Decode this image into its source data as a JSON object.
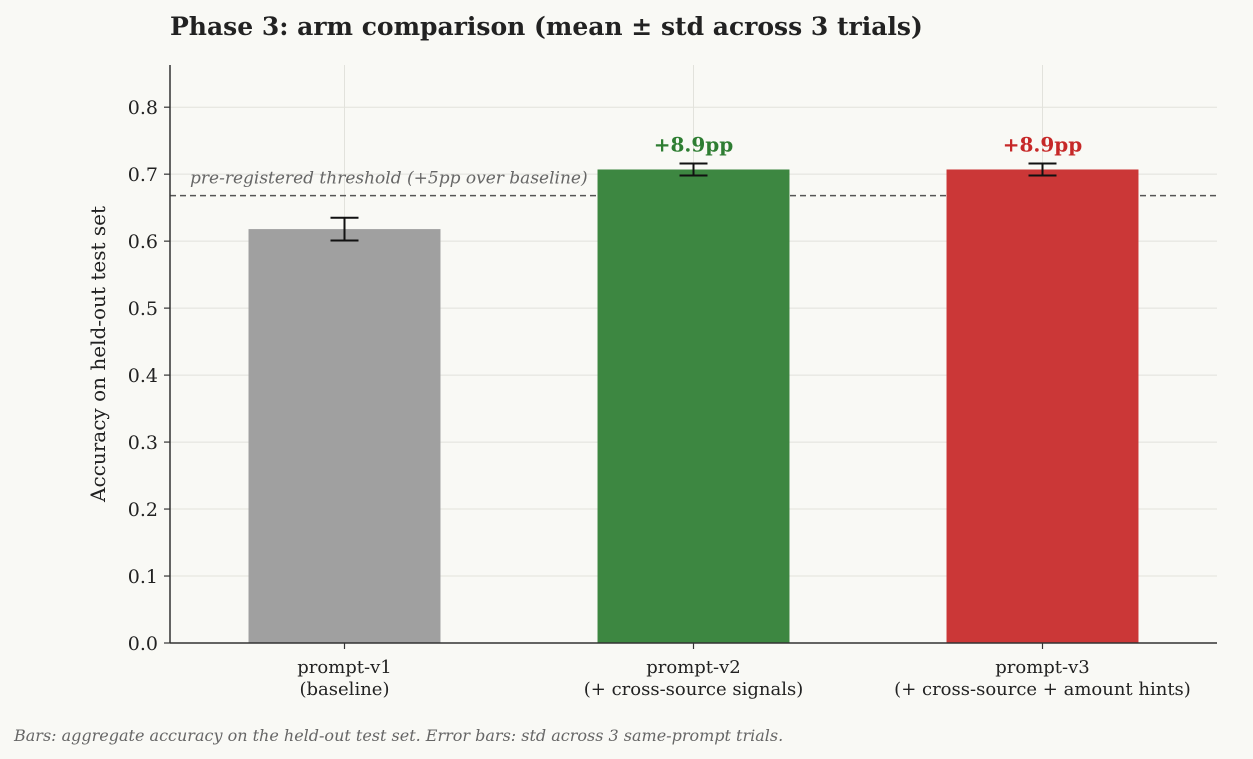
{
  "chart_data": {
    "type": "bar",
    "title": "Phase 3: arm comparison (mean ± std across 3 trials)",
    "ylabel": "Accuracy on held-out test set",
    "xlabel": "",
    "ylim": [
      0,
      0.863
    ],
    "yticks": [
      "0.0",
      "0.1",
      "0.2",
      "0.3",
      "0.4",
      "0.5",
      "0.6",
      "0.7",
      "0.8"
    ],
    "grid": true,
    "categories": [
      {
        "line1": "prompt-v1",
        "line2": "(baseline)"
      },
      {
        "line1": "prompt-v2",
        "line2": "(+ cross-source signals)"
      },
      {
        "line1": "prompt-v3",
        "line2": "(+ cross-source + amount hints)"
      }
    ],
    "values": [
      0.618,
      0.707,
      0.707
    ],
    "errors": [
      0.017,
      0.009,
      0.009
    ],
    "colors": [
      "#a0a0a0",
      "#3d8741",
      "#cb3737"
    ],
    "delta_labels": [
      null,
      "+8.9pp",
      "+8.9pp"
    ],
    "delta_colors": [
      null,
      "#2e7d32",
      "#c62828"
    ],
    "threshold": {
      "value": 0.668,
      "label": "pre-registered threshold  (+5pp over baseline)",
      "color": "#555555"
    },
    "footnote": "Bars: aggregate accuracy on the held-out test set. Error bars: std across 3 same-prompt trials."
  }
}
